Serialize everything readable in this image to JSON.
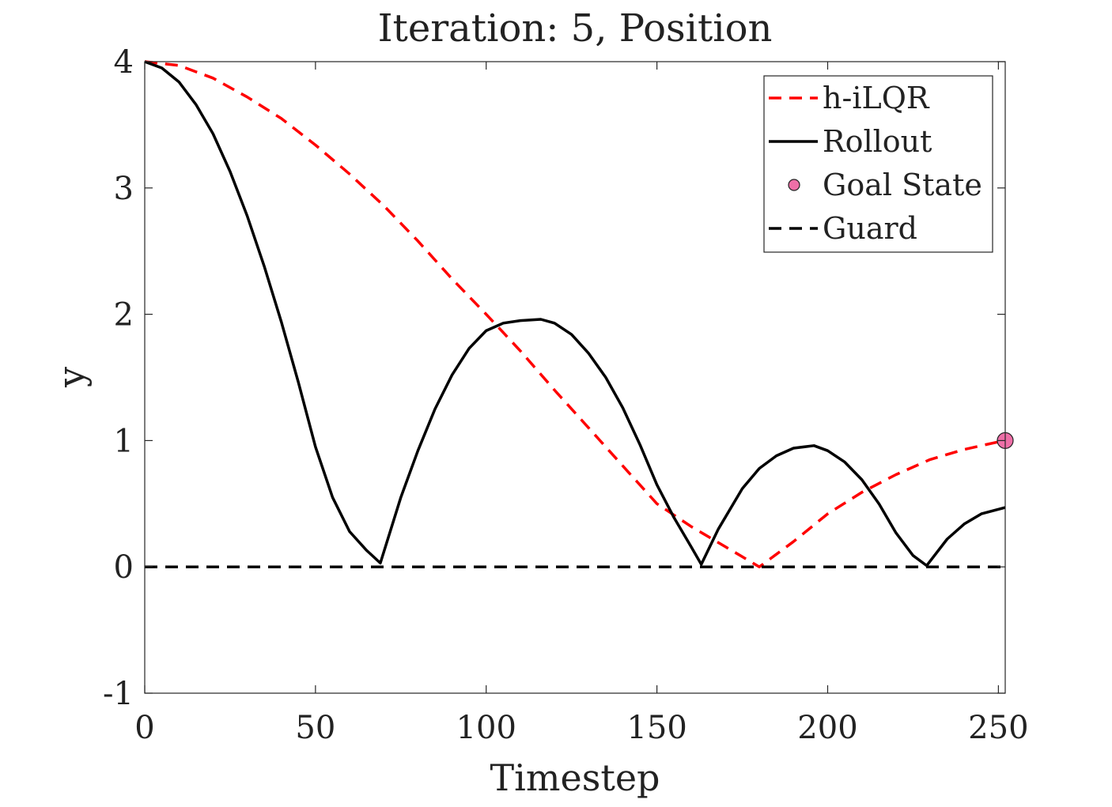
{
  "chart_data": {
    "type": "line",
    "title": "Iteration: 5, Position",
    "xlabel": "Timestep",
    "ylabel": "y",
    "xlim": [
      0,
      252
    ],
    "ylim": [
      -1,
      4
    ],
    "xticks": [
      0,
      50,
      100,
      150,
      200,
      250
    ],
    "yticks": [
      -1,
      0,
      1,
      2,
      3,
      4
    ],
    "grid": false,
    "legend_position": "top-right",
    "series": [
      {
        "name": "h-iLQR",
        "color": "#ff0000",
        "style": "dashed",
        "x": [
          0,
          10,
          20,
          30,
          40,
          50,
          60,
          70,
          80,
          90,
          100,
          110,
          120,
          130,
          140,
          150,
          160,
          170,
          175,
          180,
          185,
          190,
          200,
          210,
          220,
          230,
          240,
          250,
          252
        ],
        "y": [
          4.0,
          3.97,
          3.87,
          3.72,
          3.55,
          3.34,
          3.11,
          2.86,
          2.58,
          2.28,
          2.0,
          1.71,
          1.4,
          1.1,
          0.8,
          0.5,
          0.32,
          0.16,
          0.08,
          0.0,
          0.1,
          0.2,
          0.42,
          0.59,
          0.73,
          0.85,
          0.93,
          0.99,
          1.0
        ]
      },
      {
        "name": "Rollout",
        "color": "#000000",
        "style": "solid",
        "x": [
          0,
          5,
          10,
          15,
          20,
          25,
          30,
          35,
          40,
          45,
          50,
          55,
          60,
          65,
          69,
          75,
          80,
          85,
          90,
          95,
          100,
          105,
          110,
          116,
          120,
          125,
          130,
          135,
          140,
          145,
          150,
          155,
          160,
          163,
          168,
          175,
          180,
          185,
          190,
          196,
          200,
          205,
          210,
          215,
          220,
          225,
          229,
          235,
          240,
          245,
          252
        ],
        "y": [
          4.0,
          3.95,
          3.84,
          3.66,
          3.43,
          3.13,
          2.78,
          2.38,
          1.94,
          1.46,
          0.95,
          0.55,
          0.28,
          0.13,
          0.03,
          0.55,
          0.92,
          1.25,
          1.52,
          1.73,
          1.87,
          1.93,
          1.95,
          1.96,
          1.93,
          1.84,
          1.69,
          1.5,
          1.26,
          0.97,
          0.65,
          0.39,
          0.16,
          0.02,
          0.3,
          0.62,
          0.78,
          0.88,
          0.94,
          0.96,
          0.92,
          0.83,
          0.69,
          0.5,
          0.27,
          0.09,
          0.01,
          0.22,
          0.34,
          0.42,
          0.47
        ]
      },
      {
        "name": "Goal State",
        "type": "scatter",
        "color": "#ee6fa7",
        "x": [
          252
        ],
        "y": [
          1.0
        ]
      },
      {
        "name": "Guard",
        "color": "#000000",
        "style": "dashed",
        "x": [
          0,
          252
        ],
        "y": [
          0,
          0
        ]
      }
    ]
  }
}
